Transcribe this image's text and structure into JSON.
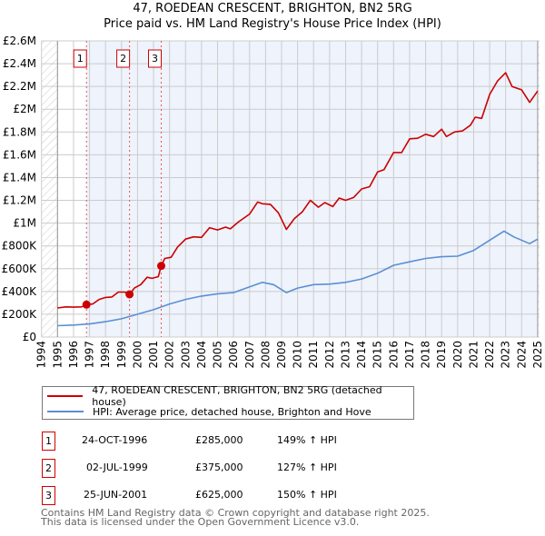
{
  "title": "47, ROEDEAN CRESCENT, BRIGHTON, BN2 5RG",
  "subtitle": "Price paid vs. HM Land Registry's House Price Index (HPI)",
  "colors": {
    "property": "#cc0000",
    "hpi": "#5b8fd4",
    "shade": "#eef3fc",
    "grid": "#cccccc"
  },
  "chart_data": {
    "type": "line",
    "title": "47, ROEDEAN CRESCENT, BRIGHTON, BN2 5RG",
    "xlim": [
      1994,
      2025
    ],
    "ylim": [
      0,
      2600000
    ],
    "yticks": [
      0,
      200000,
      400000,
      600000,
      800000,
      1000000,
      1200000,
      1400000,
      1600000,
      1800000,
      2000000,
      2200000,
      2400000,
      2600000
    ],
    "ytick_labels": [
      "£0",
      "£200K",
      "£400K",
      "£600K",
      "£800K",
      "£1M",
      "£1.2M",
      "£1.4M",
      "£1.6M",
      "£1.8M",
      "£2M",
      "£2.2M",
      "£2.4M",
      "£2.6M"
    ],
    "xtick_labels": [
      "1994",
      "1995",
      "1996",
      "1997",
      "1998",
      "1999",
      "2000",
      "2001",
      "2002",
      "2003",
      "2004",
      "2005",
      "2006",
      "2007",
      "2008",
      "2009",
      "2010",
      "2011",
      "2012",
      "2013",
      "2014",
      "2015",
      "2016",
      "2017",
      "2018",
      "2019",
      "2020",
      "2021",
      "2022",
      "2023",
      "2024",
      "2025"
    ],
    "grid": true,
    "series": [
      {
        "name": "47, ROEDEAN CRESCENT, BRIGHTON, BN2 5RG (detached house)",
        "points": [
          [
            1995,
            255000
          ],
          [
            1995.5,
            265000
          ],
          [
            1996,
            262000
          ],
          [
            1996.5,
            265000
          ],
          [
            1996.81,
            285000
          ],
          [
            1997.2,
            290000
          ],
          [
            1997.6,
            330000
          ],
          [
            1998,
            348000
          ],
          [
            1998.4,
            352000
          ],
          [
            1998.8,
            395000
          ],
          [
            1999.2,
            395000
          ],
          [
            1999.5,
            375000
          ],
          [
            1999.8,
            430000
          ],
          [
            2000.2,
            460000
          ],
          [
            2000.6,
            525000
          ],
          [
            2000.9,
            515000
          ],
          [
            2001.3,
            530000
          ],
          [
            2001.48,
            625000
          ],
          [
            2001.7,
            690000
          ],
          [
            2002.1,
            700000
          ],
          [
            2002.5,
            790000
          ],
          [
            2003,
            860000
          ],
          [
            2003.5,
            880000
          ],
          [
            2004,
            875000
          ],
          [
            2004.5,
            960000
          ],
          [
            2005,
            940000
          ],
          [
            2005.5,
            965000
          ],
          [
            2005.8,
            950000
          ],
          [
            2006.3,
            1010000
          ],
          [
            2007,
            1080000
          ],
          [
            2007.5,
            1185000
          ],
          [
            2007.8,
            1170000
          ],
          [
            2008.3,
            1165000
          ],
          [
            2008.8,
            1090000
          ],
          [
            2009.3,
            945000
          ],
          [
            2009.8,
            1040000
          ],
          [
            2010.3,
            1100000
          ],
          [
            2010.8,
            1200000
          ],
          [
            2011.3,
            1140000
          ],
          [
            2011.7,
            1180000
          ],
          [
            2012.2,
            1145000
          ],
          [
            2012.6,
            1220000
          ],
          [
            2013,
            1200000
          ],
          [
            2013.5,
            1225000
          ],
          [
            2014,
            1300000
          ],
          [
            2014.5,
            1320000
          ],
          [
            2015,
            1450000
          ],
          [
            2015.4,
            1470000
          ],
          [
            2016,
            1620000
          ],
          [
            2016.5,
            1620000
          ],
          [
            2017,
            1740000
          ],
          [
            2017.5,
            1745000
          ],
          [
            2018,
            1780000
          ],
          [
            2018.5,
            1760000
          ],
          [
            2019,
            1825000
          ],
          [
            2019.3,
            1760000
          ],
          [
            2019.8,
            1800000
          ],
          [
            2020.3,
            1810000
          ],
          [
            2020.8,
            1860000
          ],
          [
            2021.1,
            1930000
          ],
          [
            2021.5,
            1920000
          ],
          [
            2022,
            2130000
          ],
          [
            2022.5,
            2250000
          ],
          [
            2023,
            2320000
          ],
          [
            2023.4,
            2200000
          ],
          [
            2024,
            2170000
          ],
          [
            2024.5,
            2060000
          ],
          [
            2025,
            2160000
          ]
        ]
      },
      {
        "name": "HPI: Average price, detached house, Brighton and Hove",
        "points": [
          [
            1995,
            100000
          ],
          [
            1996,
            105000
          ],
          [
            1997,
            115000
          ],
          [
            1998,
            135000
          ],
          [
            1999,
            160000
          ],
          [
            2000,
            200000
          ],
          [
            2001,
            240000
          ],
          [
            2002,
            290000
          ],
          [
            2003,
            330000
          ],
          [
            2004,
            360000
          ],
          [
            2005,
            380000
          ],
          [
            2006,
            390000
          ],
          [
            2007,
            440000
          ],
          [
            2007.8,
            480000
          ],
          [
            2008.5,
            460000
          ],
          [
            2009.3,
            390000
          ],
          [
            2010,
            430000
          ],
          [
            2011,
            460000
          ],
          [
            2012,
            465000
          ],
          [
            2013,
            480000
          ],
          [
            2014,
            510000
          ],
          [
            2015,
            560000
          ],
          [
            2016,
            630000
          ],
          [
            2017,
            660000
          ],
          [
            2018,
            690000
          ],
          [
            2019,
            705000
          ],
          [
            2020,
            710000
          ],
          [
            2021,
            760000
          ],
          [
            2022,
            850000
          ],
          [
            2022.9,
            930000
          ],
          [
            2023.5,
            880000
          ],
          [
            2024.5,
            820000
          ],
          [
            2025,
            860000
          ]
        ]
      }
    ],
    "sales": [
      {
        "label": "1",
        "x": 1996.81,
        "value": 285000
      },
      {
        "label": "2",
        "x": 1999.5,
        "value": 375000
      },
      {
        "label": "3",
        "x": 2001.48,
        "value": 625000
      }
    ]
  },
  "legend": {
    "property": "47, ROEDEAN CRESCENT, BRIGHTON, BN2 5RG (detached house)",
    "hpi": "HPI: Average price, detached house, Brighton and Hove"
  },
  "transactions": [
    {
      "num": "1",
      "date": "24-OCT-1996",
      "price": "£285,000",
      "hpi": "149% ↑ HPI"
    },
    {
      "num": "2",
      "date": "02-JUL-1999",
      "price": "£375,000",
      "hpi": "127% ↑ HPI"
    },
    {
      "num": "3",
      "date": "25-JUN-2001",
      "price": "£625,000",
      "hpi": "150% ↑ HPI"
    }
  ],
  "footer": {
    "line1": "Contains HM Land Registry data © Crown copyright and database right 2025.",
    "line2": "This data is licensed under the Open Government Licence v3.0."
  }
}
